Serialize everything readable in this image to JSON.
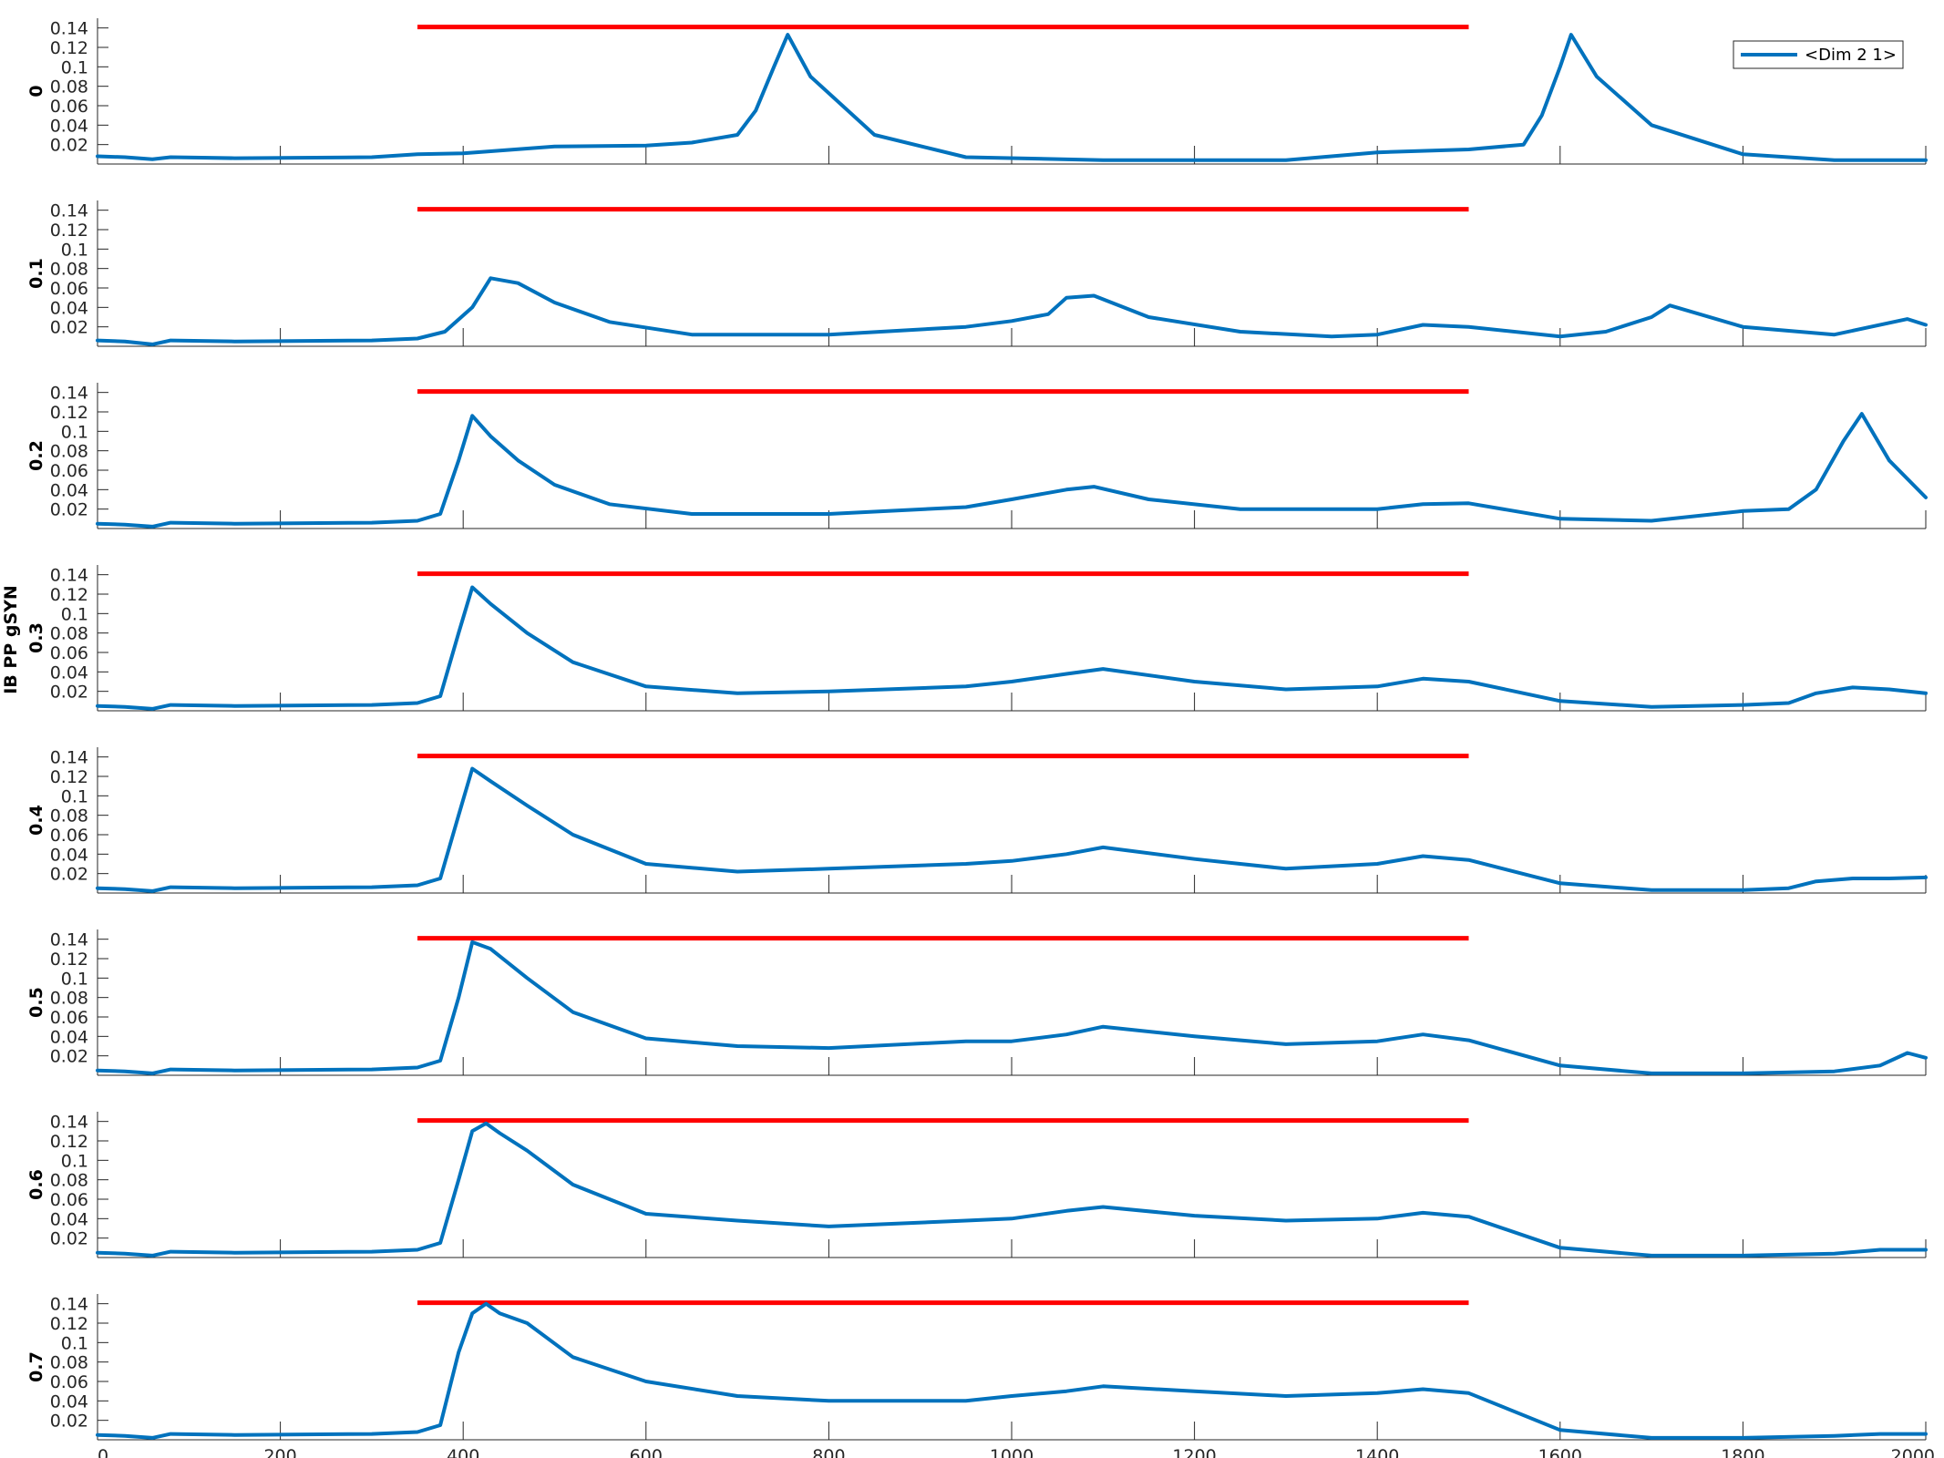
{
  "figure": {
    "ylabel": "IB PP gSYN",
    "legend_entry": "<Dim 2 1>",
    "colors": {
      "trace": "#0072BD",
      "bar": "#FF0000",
      "axis": "#262626"
    }
  },
  "chart_data": {
    "type": "line",
    "xlim": [
      0,
      2000
    ],
    "ylim": [
      0,
      0.15
    ],
    "x_ticks": [
      0,
      200,
      400,
      600,
      800,
      1000,
      1200,
      1400,
      1600,
      1800,
      2000
    ],
    "x_tick_labels": [
      "0",
      "200",
      "400",
      "600",
      "800",
      "1000",
      "1200",
      "1400",
      "1600",
      "1800",
      "2000"
    ],
    "y_ticks": [
      0.02,
      0.04,
      0.06,
      0.08,
      0.1,
      0.12,
      0.14
    ],
    "y_tick_labels": [
      "0.02",
      "0.04",
      "0.06",
      "0.08",
      "0.1",
      "0.12",
      "0.14"
    ],
    "ylabel": "IB PP gSYN",
    "legend": {
      "entries": [
        "<Dim 2 1>"
      ],
      "placement": "top-right"
    },
    "grid": false,
    "stimulus_bar": {
      "x_start": 350,
      "x_end": 1500,
      "y": 0.141
    },
    "panels": [
      {
        "label": "0",
        "series": {
          "name": "<Dim 2 1>",
          "x": [
            0,
            30,
            60,
            80,
            150,
            300,
            350,
            400,
            500,
            600,
            650,
            700,
            720,
            740,
            755,
            780,
            850,
            950,
            1100,
            1300,
            1400,
            1500,
            1560,
            1580,
            1600,
            1612,
            1640,
            1700,
            1800,
            1900,
            2000
          ],
          "y": [
            0.008,
            0.007,
            0.005,
            0.007,
            0.006,
            0.007,
            0.01,
            0.011,
            0.018,
            0.019,
            0.022,
            0.03,
            0.055,
            0.1,
            0.133,
            0.09,
            0.03,
            0.007,
            0.004,
            0.004,
            0.012,
            0.015,
            0.02,
            0.05,
            0.1,
            0.133,
            0.09,
            0.04,
            0.01,
            0.004,
            0.004
          ]
        }
      },
      {
        "label": "0.1",
        "series": {
          "name": "<Dim 2 1>",
          "x": [
            0,
            30,
            60,
            80,
            150,
            300,
            350,
            380,
            410,
            430,
            460,
            500,
            560,
            650,
            800,
            950,
            1000,
            1040,
            1060,
            1090,
            1150,
            1250,
            1350,
            1400,
            1450,
            1500,
            1600,
            1650,
            1700,
            1720,
            1800,
            1900,
            1980,
            2000
          ],
          "y": [
            0.006,
            0.005,
            0.002,
            0.006,
            0.005,
            0.006,
            0.008,
            0.015,
            0.04,
            0.07,
            0.065,
            0.045,
            0.025,
            0.012,
            0.012,
            0.02,
            0.026,
            0.033,
            0.05,
            0.052,
            0.03,
            0.015,
            0.01,
            0.012,
            0.022,
            0.02,
            0.01,
            0.015,
            0.03,
            0.042,
            0.02,
            0.012,
            0.028,
            0.022
          ]
        }
      },
      {
        "label": "0.2",
        "series": {
          "name": "<Dim 2 1>",
          "x": [
            0,
            30,
            60,
            80,
            150,
            300,
            350,
            375,
            395,
            410,
            430,
            460,
            500,
            560,
            650,
            800,
            950,
            1000,
            1060,
            1090,
            1150,
            1250,
            1400,
            1450,
            1500,
            1600,
            1700,
            1800,
            1850,
            1880,
            1910,
            1930,
            1960,
            2000
          ],
          "y": [
            0.005,
            0.004,
            0.002,
            0.006,
            0.005,
            0.006,
            0.008,
            0.015,
            0.07,
            0.116,
            0.095,
            0.07,
            0.045,
            0.025,
            0.015,
            0.015,
            0.022,
            0.03,
            0.04,
            0.043,
            0.03,
            0.02,
            0.02,
            0.025,
            0.026,
            0.01,
            0.008,
            0.018,
            0.02,
            0.04,
            0.09,
            0.118,
            0.07,
            0.032
          ]
        }
      },
      {
        "label": "0.3",
        "series": {
          "name": "<Dim 2 1>",
          "x": [
            0,
            30,
            60,
            80,
            150,
            300,
            350,
            375,
            395,
            410,
            430,
            470,
            520,
            600,
            700,
            800,
            950,
            1000,
            1060,
            1100,
            1200,
            1300,
            1400,
            1450,
            1500,
            1600,
            1700,
            1800,
            1850,
            1880,
            1920,
            1960,
            2000
          ],
          "y": [
            0.005,
            0.004,
            0.002,
            0.006,
            0.005,
            0.006,
            0.008,
            0.015,
            0.08,
            0.127,
            0.11,
            0.08,
            0.05,
            0.025,
            0.018,
            0.02,
            0.025,
            0.03,
            0.038,
            0.043,
            0.03,
            0.022,
            0.025,
            0.033,
            0.03,
            0.01,
            0.004,
            0.006,
            0.008,
            0.018,
            0.024,
            0.022,
            0.018
          ]
        }
      },
      {
        "label": "0.4",
        "series": {
          "name": "<Dim 2 1>",
          "x": [
            0,
            30,
            60,
            80,
            150,
            300,
            350,
            375,
            395,
            410,
            430,
            470,
            520,
            600,
            700,
            800,
            950,
            1000,
            1060,
            1100,
            1200,
            1300,
            1400,
            1450,
            1500,
            1600,
            1700,
            1800,
            1850,
            1880,
            1920,
            1960,
            2000
          ],
          "y": [
            0.005,
            0.004,
            0.002,
            0.006,
            0.005,
            0.006,
            0.008,
            0.015,
            0.08,
            0.128,
            0.115,
            0.09,
            0.06,
            0.03,
            0.022,
            0.025,
            0.03,
            0.033,
            0.04,
            0.047,
            0.035,
            0.025,
            0.03,
            0.038,
            0.034,
            0.01,
            0.003,
            0.003,
            0.005,
            0.012,
            0.015,
            0.015,
            0.016
          ]
        }
      },
      {
        "label": "0.5",
        "series": {
          "name": "<Dim 2 1>",
          "x": [
            0,
            30,
            60,
            80,
            150,
            300,
            350,
            375,
            395,
            410,
            430,
            470,
            520,
            600,
            700,
            800,
            950,
            1000,
            1060,
            1100,
            1200,
            1300,
            1400,
            1450,
            1500,
            1600,
            1700,
            1800,
            1900,
            1950,
            1980,
            2000
          ],
          "y": [
            0.005,
            0.004,
            0.002,
            0.006,
            0.005,
            0.006,
            0.008,
            0.015,
            0.08,
            0.137,
            0.13,
            0.1,
            0.065,
            0.038,
            0.03,
            0.028,
            0.035,
            0.035,
            0.042,
            0.05,
            0.04,
            0.032,
            0.035,
            0.042,
            0.036,
            0.01,
            0.002,
            0.002,
            0.004,
            0.01,
            0.023,
            0.018
          ]
        }
      },
      {
        "label": "0.6",
        "series": {
          "name": "<Dim 2 1>",
          "x": [
            0,
            30,
            60,
            80,
            150,
            300,
            350,
            375,
            395,
            410,
            425,
            440,
            470,
            520,
            600,
            700,
            800,
            950,
            1000,
            1060,
            1100,
            1200,
            1300,
            1400,
            1450,
            1500,
            1600,
            1700,
            1800,
            1900,
            1950,
            2000
          ],
          "y": [
            0.005,
            0.004,
            0.002,
            0.006,
            0.005,
            0.006,
            0.008,
            0.015,
            0.08,
            0.13,
            0.138,
            0.128,
            0.11,
            0.075,
            0.045,
            0.038,
            0.032,
            0.038,
            0.04,
            0.048,
            0.052,
            0.043,
            0.038,
            0.04,
            0.046,
            0.042,
            0.01,
            0.002,
            0.002,
            0.004,
            0.008,
            0.008
          ]
        }
      },
      {
        "label": "0.7",
        "series": {
          "name": "<Dim 2 1>",
          "x": [
            0,
            30,
            60,
            80,
            150,
            300,
            350,
            375,
            395,
            410,
            425,
            440,
            470,
            520,
            600,
            700,
            800,
            950,
            1000,
            1060,
            1100,
            1200,
            1300,
            1400,
            1450,
            1500,
            1600,
            1700,
            1800,
            1900,
            1950,
            2000
          ],
          "y": [
            0.005,
            0.004,
            0.002,
            0.006,
            0.005,
            0.006,
            0.008,
            0.015,
            0.09,
            0.13,
            0.14,
            0.13,
            0.12,
            0.085,
            0.06,
            0.045,
            0.04,
            0.04,
            0.045,
            0.05,
            0.055,
            0.05,
            0.045,
            0.048,
            0.052,
            0.048,
            0.01,
            0.002,
            0.002,
            0.004,
            0.006,
            0.006
          ]
        }
      }
    ]
  }
}
